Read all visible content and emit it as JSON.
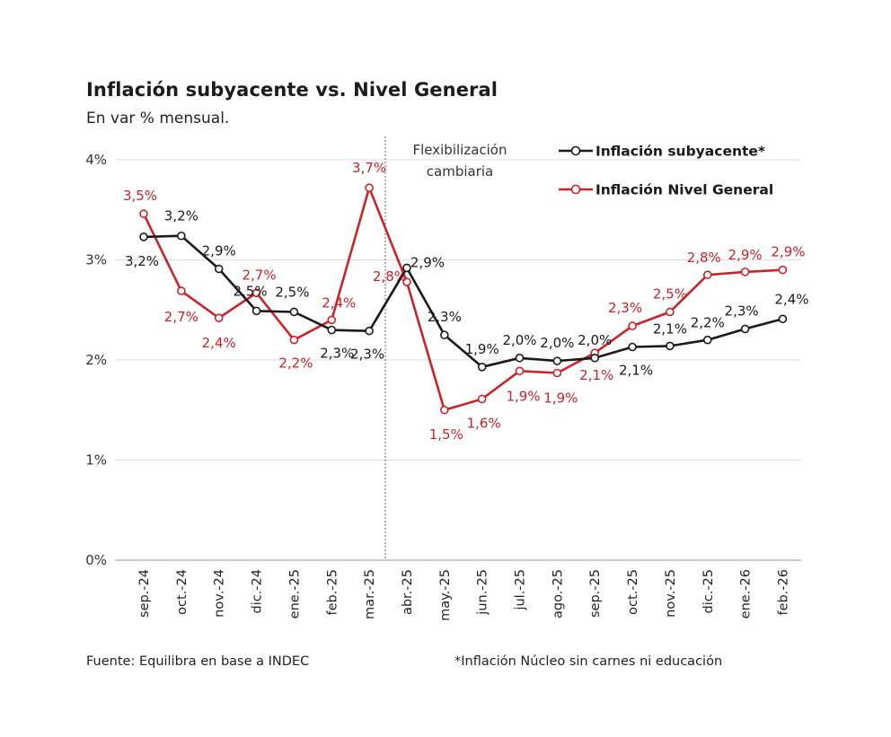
{
  "title": "Inflación subyacente vs. Nivel General",
  "subtitle": "En var % mensual.",
  "source_left": "Fuente: Equilibra en base a INDEC",
  "source_right": "*Inflación Núcleo sin carnes ni educación",
  "colors": {
    "core": "#1a1a1a",
    "general": "#cc2229",
    "grid": "#dcdcdc",
    "annotation": "#666666"
  },
  "chart_data": {
    "type": "line",
    "title": "Inflación subyacente vs. Nivel General",
    "subtitle": "En var % mensual.",
    "xlabel": "",
    "ylabel": "",
    "categories": [
      "sep.-24",
      "oct.-24",
      "nov.-24",
      "dic.-24",
      "ene.-25",
      "feb.-25",
      "mar.-25",
      "abr.-25",
      "may.-25",
      "jun.-25",
      "jul.-25",
      "ago.-25",
      "sep.-25",
      "oct.-25",
      "nov.-25",
      "dic.-25",
      "ene.-26",
      "feb.-26"
    ],
    "ylim": [
      0,
      4
    ],
    "yticks": [
      0,
      1,
      2,
      3,
      4
    ],
    "ytick_labels": [
      "0%",
      "1%",
      "2%",
      "3%",
      "4%"
    ],
    "grid": true,
    "legend_position": "top-right",
    "annotation": {
      "lines": [
        "Flexibilización",
        "cambiaria"
      ],
      "between": [
        "mar.-25",
        "abr.-25"
      ]
    },
    "series": [
      {
        "name": "Inflación subyacente*",
        "color": "#1a1a1a",
        "values": [
          3.23,
          3.24,
          2.91,
          2.49,
          2.48,
          2.3,
          2.29,
          2.92,
          2.25,
          1.93,
          2.02,
          1.99,
          2.02,
          2.13,
          2.14,
          2.2,
          2.31,
          2.41
        ],
        "labels": [
          "3,2%",
          "3,2%",
          "2,9%",
          "2,5%",
          "2,5%",
          "2,3%",
          "2,3%",
          "2,9%",
          "2,3%",
          "1,9%",
          "2,0%",
          "2,0%",
          "2,0%",
          "2,1%",
          "2,1%",
          "2,2%",
          "2,3%",
          "2,4%"
        ]
      },
      {
        "name": "Inflación Nivel General",
        "color": "#cc2229",
        "values": [
          3.46,
          2.69,
          2.42,
          2.67,
          2.2,
          2.4,
          3.72,
          2.78,
          1.5,
          1.61,
          1.89,
          1.87,
          2.07,
          2.34,
          2.48,
          2.85,
          2.88,
          2.9
        ],
        "labels": [
          "3,5%",
          "2,7%",
          "2,4%",
          "2,7%",
          "2,2%",
          "2,4%",
          "3,7%",
          "2,8%",
          "1,5%",
          "1,6%",
          "1,9%",
          "1,9%",
          "2,1%",
          "2,3%",
          "2,5%",
          "2,8%",
          "2,9%",
          "2,9%"
        ]
      }
    ]
  }
}
